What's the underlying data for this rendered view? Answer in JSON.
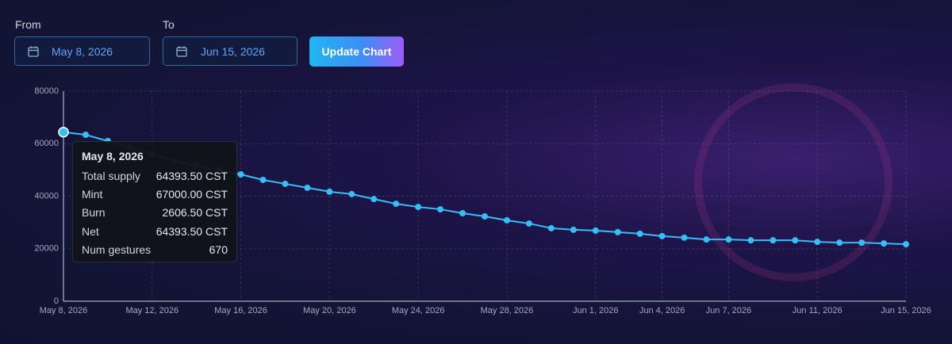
{
  "controls": {
    "from_label": "From",
    "from_value": "May 8, 2026",
    "to_label": "To",
    "to_value": "Jun 15, 2026",
    "button": "Update Chart"
  },
  "chart_data": {
    "type": "line",
    "color": "#38bdf8",
    "grid": true,
    "categories": [
      "May 8, 2026",
      null,
      null,
      null,
      "May 12, 2026",
      null,
      null,
      null,
      "May 16, 2026",
      null,
      null,
      null,
      "May 20, 2026",
      null,
      null,
      null,
      "May 24, 2026",
      null,
      null,
      null,
      "May 28, 2026",
      null,
      null,
      null,
      "Jun 1, 2026",
      null,
      null,
      "Jun 4, 2026",
      null,
      null,
      "Jun 7, 2026",
      null,
      null,
      null,
      "Jun 11, 2026",
      null,
      null,
      null,
      "Jun 15, 2026"
    ],
    "values": [
      64393.5,
      63400,
      61000,
      58500,
      56000,
      53500,
      51500,
      50000,
      48300,
      46200,
      44700,
      43200,
      41700,
      40800,
      38900,
      37100,
      35900,
      35000,
      33500,
      32300,
      30800,
      29600,
      27800,
      27200,
      26900,
      26300,
      25700,
      24800,
      24200,
      23500,
      23500,
      23200,
      23200,
      23200,
      22600,
      22300,
      22300,
      22000,
      21700
    ],
    "ylim": [
      0,
      80000
    ],
    "yticks": [
      0,
      20000,
      40000,
      60000,
      80000
    ],
    "tooltip": {
      "title": "May 8, 2026",
      "rows": [
        [
          "Total supply",
          "64393.50 CST"
        ],
        [
          "Mint",
          "67000.00 CST"
        ],
        [
          "Burn",
          "2606.50 CST"
        ],
        [
          "Net",
          "64393.50 CST"
        ],
        [
          "Num gestures",
          "670"
        ]
      ]
    }
  }
}
